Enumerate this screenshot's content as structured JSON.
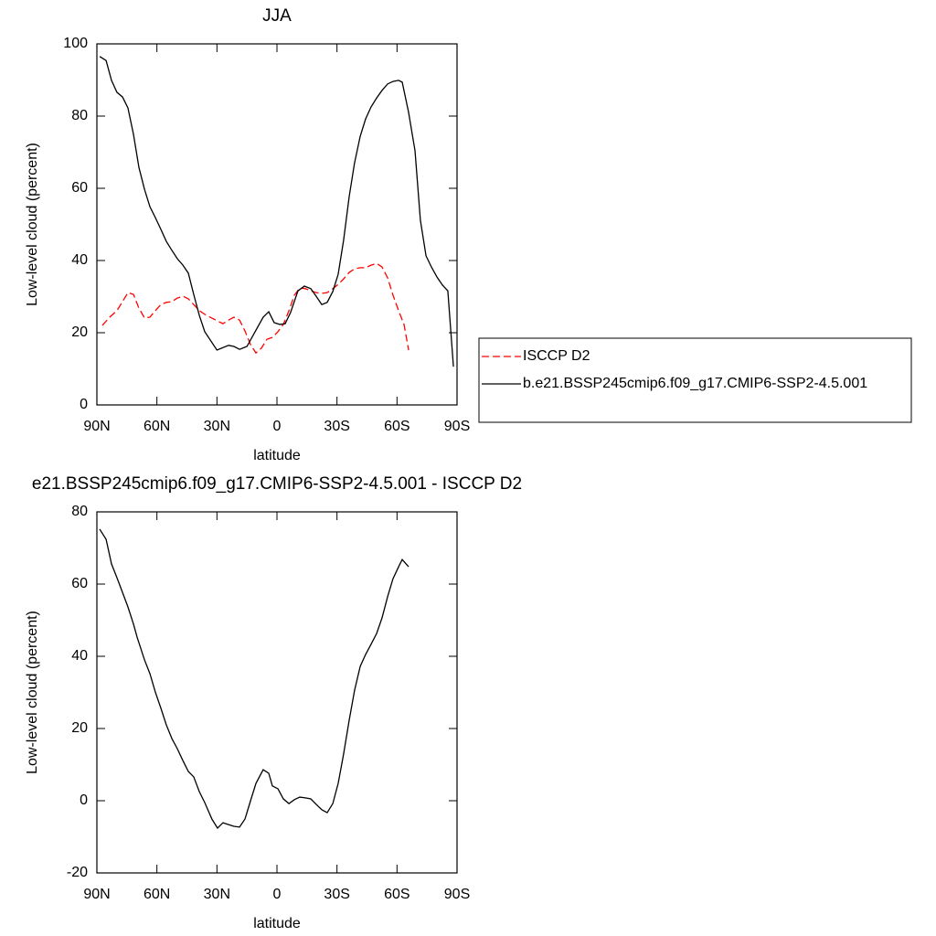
{
  "chart_data": [
    {
      "type": "line",
      "title": "JJA",
      "xlabel": "latitude",
      "ylabel": "Low-level cloud (percent)",
      "xlim": [
        90,
        -90
      ],
      "xticks": [
        {
          "value": 90,
          "label": "90N"
        },
        {
          "value": 60,
          "label": "60N"
        },
        {
          "value": 30,
          "label": "30N"
        },
        0,
        {
          "value": -30,
          "label": "30S"
        },
        {
          "value": -60,
          "label": "60S"
        },
        {
          "value": -90,
          "label": "90S"
        }
      ],
      "ylim": [
        0,
        100
      ],
      "yticks": [
        0,
        20,
        40,
        60,
        80,
        100
      ],
      "legend": "right",
      "series": [
        {
          "name": "ISCCP D2",
          "color": "#ff0000",
          "dash": true,
          "x": [
            87.3,
            83.6,
            80,
            77.2,
            74.5,
            71.7,
            69,
            66.2,
            63.5,
            60.8,
            58,
            55.3,
            52.5,
            49.8,
            47,
            44.3,
            41.6,
            38.8,
            36.1,
            33.4,
            30.6,
            27,
            24.2,
            21.5,
            18.7,
            16,
            13.2,
            10.5,
            7.8,
            5,
            2.3,
            -0.5,
            -3.2,
            -6,
            -8.7,
            -11.4,
            -14.2,
            -16.9,
            -19.6,
            -22.4,
            -25.1,
            -27.9,
            -30.6,
            -33.3,
            -36.1,
            -38.8,
            -41.6,
            -44.3,
            -47,
            -49.8,
            -52.5,
            -55.3,
            -58,
            -60.8,
            -63.5,
            -65.8
          ],
          "values": [
            22,
            24.3,
            26.1,
            28.6,
            31.1,
            30.6,
            26.8,
            24.1,
            24.3,
            26.1,
            27.8,
            28.4,
            28.6,
            29.6,
            30.1,
            29.4,
            27.8,
            26.1,
            25.1,
            24.3,
            23.5,
            22.5,
            23.5,
            24.3,
            23.5,
            20.5,
            16.7,
            14.4,
            15.7,
            18.2,
            18.7,
            20.3,
            22.3,
            26.1,
            30.4,
            32.4,
            32.2,
            31.6,
            31.1,
            30.9,
            31.1,
            32.2,
            33.4,
            34.9,
            36.7,
            37.7,
            38,
            38,
            38.7,
            39.2,
            38.2,
            35.2,
            30.4,
            26.1,
            22.3,
            15.2
          ]
        },
        {
          "name": "b.e21.BSSP245cmip6.f09_g17.CMIP6-SSP2-4.5.001",
          "color": "#000000",
          "dash": false,
          "x": [
            88.6,
            85.4,
            82.7,
            80,
            77.2,
            74.5,
            71.7,
            69,
            66.2,
            63.5,
            60.8,
            58,
            55.3,
            52.5,
            49.8,
            47,
            44.3,
            41.6,
            38.8,
            36.1,
            30,
            24.2,
            21.5,
            18.7,
            15,
            6.9,
            4.1,
            1.4,
            -1.4,
            -4.1,
            -6.8,
            -10.5,
            -13.7,
            -16.9,
            -19.6,
            -22.4,
            -25.1,
            -27.9,
            -30.6,
            -33.3,
            -36.1,
            -38.8,
            -41.6,
            -44.3,
            -47,
            -49.8,
            -52.5,
            -55.3,
            -58,
            -60.8,
            -62.6,
            -65.8,
            -69,
            -71.7,
            -74.5,
            -77.2,
            -80,
            -82.7,
            -85.4,
            -88.2
          ],
          "values": [
            96.5,
            95.4,
            89.9,
            86.6,
            85.3,
            82.3,
            74.9,
            65.8,
            59.7,
            54.9,
            51.9,
            48.6,
            45.3,
            42.8,
            40.5,
            38.7,
            36.5,
            30.6,
            24.8,
            20.3,
            15.2,
            16.5,
            16.2,
            15.4,
            16.2,
            24.3,
            25.8,
            22.8,
            22.3,
            22.5,
            25.6,
            31.6,
            32.9,
            32.2,
            30.1,
            27.8,
            28.4,
            31.4,
            36.2,
            45.6,
            57.7,
            67.1,
            74.4,
            79.2,
            82.5,
            85,
            87.1,
            88.9,
            89.6,
            89.9,
            89.4,
            81,
            70.4,
            51.1,
            41.3,
            38.2,
            35.4,
            33.2,
            31.6,
            10.6
          ]
        }
      ]
    },
    {
      "type": "line",
      "title": "e21.BSSP245cmip6.f09_g17.CMIP6-SSP2-4.5.001 - ISCCP D2",
      "xlabel": "latitude",
      "ylabel": "Low-level cloud (percent)",
      "xlim": [
        90,
        -90
      ],
      "xticks": [
        {
          "value": 90,
          "label": "90N"
        },
        {
          "value": 60,
          "label": "60N"
        },
        {
          "value": 30,
          "label": "30N"
        },
        0,
        {
          "value": -30,
          "label": "30S"
        },
        {
          "value": -60,
          "label": "60S"
        },
        {
          "value": -90,
          "label": "90S"
        }
      ],
      "ylim": [
        -20,
        80
      ],
      "yticks": [
        -20,
        0,
        20,
        40,
        60,
        80
      ],
      "series": [
        {
          "color": "#000000",
          "dash": false,
          "x": [
            88.6,
            85.4,
            82.7,
            80,
            77.2,
            74.5,
            71.7,
            69.9,
            66.2,
            63.5,
            60.8,
            58,
            55.3,
            52.5,
            49.8,
            47,
            44.3,
            41.6,
            38.8,
            36.1,
            32.5,
            29.7,
            27,
            24.2,
            21.5,
            18.7,
            16,
            13.2,
            10.5,
            6.9,
            4.1,
            2.3,
            -0.5,
            -3.2,
            -6,
            -8.7,
            -11.4,
            -14.2,
            -16.9,
            -19.6,
            -22.4,
            -25.1,
            -27.9,
            -30.6,
            -33.3,
            -36.1,
            -38.8,
            -41.6,
            -44.3,
            -47,
            -49.8,
            -52.5,
            -55.3,
            -58,
            -60.8,
            -62.6,
            -65.8
          ],
          "values": [
            75.2,
            72.4,
            65.6,
            61.8,
            57.7,
            53.7,
            48.9,
            45.3,
            39,
            35.2,
            30.1,
            25.6,
            21,
            17.2,
            14.4,
            11.1,
            8.1,
            6.6,
            2.5,
            -0.5,
            -5.1,
            -7.6,
            -6.1,
            -6.6,
            -7.1,
            -7.3,
            -5.1,
            0,
            4.8,
            8.6,
            7.6,
            4.1,
            3.3,
            0.5,
            -0.8,
            0.3,
            1,
            0.8,
            0.5,
            -1,
            -2.5,
            -3.3,
            -0.8,
            4.8,
            12.9,
            22.3,
            30.6,
            37.2,
            40.5,
            43.3,
            46.3,
            50.6,
            56.5,
            61.5,
            64.8,
            66.8,
            64.8
          ]
        }
      ]
    }
  ]
}
